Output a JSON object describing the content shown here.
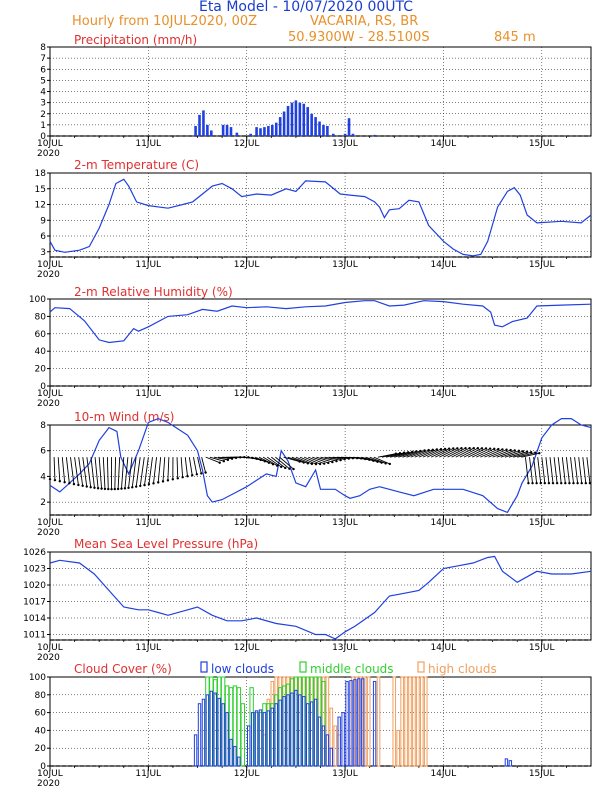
{
  "header": {
    "title": "Eta Model - 10/07/2020 00UTC",
    "subtitle": "Hourly from 10JUL2020, 00Z",
    "location": "VACARIA, RS, BR",
    "coords": "50.9300W - 28.5100S",
    "elevation": "845   m"
  },
  "colors": {
    "title": "#1a3dcc",
    "header_orange": "#e8902a",
    "panel_title": "#e03030",
    "series_blue": "#2040e0",
    "low": "#2040e0",
    "middle": "#30d030",
    "high": "#f0a060"
  },
  "chart_data": [
    {
      "id": "precip",
      "type": "bar",
      "title": "Precipitation (mm/h)",
      "x_unit": "days since 10JUL 00Z",
      "xlim": [
        0,
        5.5
      ],
      "ylim": [
        0,
        8
      ],
      "yticks": [
        0,
        1,
        2,
        3,
        4,
        5,
        6,
        7,
        8
      ],
      "xticks": [
        "10JUL",
        "11JUL",
        "12JUL",
        "13JUL",
        "14JUL",
        "15JUL"
      ],
      "year": "2020",
      "bars": [
        [
          1.48,
          0.9
        ],
        [
          1.52,
          1.9
        ],
        [
          1.56,
          2.3
        ],
        [
          1.6,
          1.0
        ],
        [
          1.64,
          0.5
        ],
        [
          1.76,
          1.0
        ],
        [
          1.8,
          1.0
        ],
        [
          1.84,
          0.8
        ],
        [
          1.9,
          0.3
        ],
        [
          2.04,
          0.2
        ],
        [
          2.1,
          0.8
        ],
        [
          2.14,
          0.7
        ],
        [
          2.18,
          0.8
        ],
        [
          2.22,
          0.9
        ],
        [
          2.26,
          1.0
        ],
        [
          2.3,
          1.2
        ],
        [
          2.34,
          1.7
        ],
        [
          2.38,
          2.2
        ],
        [
          2.42,
          2.7
        ],
        [
          2.46,
          3.0
        ],
        [
          2.5,
          3.2
        ],
        [
          2.54,
          3.0
        ],
        [
          2.58,
          2.9
        ],
        [
          2.62,
          2.6
        ],
        [
          2.66,
          2.0
        ],
        [
          2.7,
          1.7
        ],
        [
          2.74,
          1.3
        ],
        [
          2.78,
          1.0
        ],
        [
          2.82,
          0.9
        ],
        [
          2.88,
          0.2
        ],
        [
          3.0,
          0.2
        ],
        [
          3.04,
          1.6
        ],
        [
          3.08,
          0.2
        ],
        [
          3.3,
          0.1
        ]
      ]
    },
    {
      "id": "temp",
      "type": "line",
      "title": "2-m Temperature (C)",
      "xlim": [
        0,
        5.5
      ],
      "ylim": [
        2,
        18
      ],
      "yticks": [
        3,
        6,
        9,
        12,
        15,
        18
      ],
      "xticks": [
        "10JUL",
        "11JUL",
        "12JUL",
        "13JUL",
        "14JUL",
        "15JUL"
      ],
      "year": "2020",
      "points": [
        [
          0,
          5
        ],
        [
          0.05,
          3.3
        ],
        [
          0.15,
          2.9
        ],
        [
          0.3,
          3.3
        ],
        [
          0.4,
          4
        ],
        [
          0.5,
          7.5
        ],
        [
          0.6,
          12
        ],
        [
          0.67,
          16
        ],
        [
          0.75,
          16.8
        ],
        [
          0.8,
          15.5
        ],
        [
          0.88,
          12.5
        ],
        [
          1.0,
          11.8
        ],
        [
          1.2,
          11.3
        ],
        [
          1.35,
          12
        ],
        [
          1.45,
          12.5
        ],
        [
          1.55,
          14
        ],
        [
          1.65,
          15.5
        ],
        [
          1.75,
          16
        ],
        [
          1.85,
          15
        ],
        [
          1.95,
          13.5
        ],
        [
          2.1,
          14
        ],
        [
          2.25,
          13.8
        ],
        [
          2.4,
          15
        ],
        [
          2.5,
          14.5
        ],
        [
          2.6,
          16.5
        ],
        [
          2.8,
          16.3
        ],
        [
          2.95,
          14
        ],
        [
          3.05,
          13.8
        ],
        [
          3.2,
          13.5
        ],
        [
          3.3,
          12.5
        ],
        [
          3.35,
          11.5
        ],
        [
          3.4,
          9.5
        ],
        [
          3.45,
          11
        ],
        [
          3.55,
          11.2
        ],
        [
          3.65,
          12.8
        ],
        [
          3.75,
          12.5
        ],
        [
          3.85,
          8
        ],
        [
          4.0,
          5
        ],
        [
          4.1,
          3.5
        ],
        [
          4.2,
          2.5
        ],
        [
          4.3,
          2.2
        ],
        [
          4.38,
          2.5
        ],
        [
          4.45,
          5
        ],
        [
          4.55,
          11.5
        ],
        [
          4.65,
          14.5
        ],
        [
          4.72,
          15.2
        ],
        [
          4.78,
          13.8
        ],
        [
          4.85,
          10
        ],
        [
          4.95,
          8.5
        ],
        [
          5.2,
          8.8
        ],
        [
          5.4,
          8.5
        ],
        [
          5.5,
          10
        ]
      ]
    },
    {
      "id": "rh",
      "type": "line",
      "title": "2-m Relative Humidity (%)",
      "xlim": [
        0,
        5.5
      ],
      "ylim": [
        0,
        100
      ],
      "yticks": [
        0,
        20,
        40,
        60,
        80,
        100
      ],
      "xticks": [
        "10JUL",
        "11JUL",
        "12JUL",
        "13JUL",
        "14JUL",
        "15JUL"
      ],
      "year": "2020",
      "points": [
        [
          0,
          85
        ],
        [
          0.05,
          90
        ],
        [
          0.2,
          89
        ],
        [
          0.35,
          75
        ],
        [
          0.5,
          53
        ],
        [
          0.6,
          50
        ],
        [
          0.75,
          52
        ],
        [
          0.85,
          66
        ],
        [
          0.9,
          63
        ],
        [
          1.0,
          68
        ],
        [
          1.2,
          80
        ],
        [
          1.4,
          82
        ],
        [
          1.55,
          88
        ],
        [
          1.7,
          86
        ],
        [
          1.85,
          92
        ],
        [
          2.0,
          90
        ],
        [
          2.2,
          91
        ],
        [
          2.4,
          89
        ],
        [
          2.6,
          91
        ],
        [
          2.8,
          92
        ],
        [
          3.0,
          96
        ],
        [
          3.2,
          98
        ],
        [
          3.3,
          98
        ],
        [
          3.45,
          92
        ],
        [
          3.6,
          93
        ],
        [
          3.8,
          98
        ],
        [
          4.0,
          97
        ],
        [
          4.2,
          94
        ],
        [
          4.4,
          92
        ],
        [
          4.48,
          85
        ],
        [
          4.52,
          70
        ],
        [
          4.6,
          68
        ],
        [
          4.7,
          74
        ],
        [
          4.85,
          78
        ],
        [
          4.95,
          92
        ],
        [
          5.2,
          93
        ],
        [
          5.5,
          94
        ]
      ]
    },
    {
      "id": "wind",
      "type": "line",
      "title": "10-m Wind (m/s)",
      "xlim": [
        0,
        5.5
      ],
      "ylim": [
        1,
        8
      ],
      "yticks": [
        2,
        4,
        6,
        8
      ],
      "xticks": [
        "10JUL",
        "11JUL",
        "12JUL",
        "13JUL",
        "14JUL",
        "15JUL"
      ],
      "year": "2020",
      "points": [
        [
          0,
          3.3
        ],
        [
          0.1,
          2.8
        ],
        [
          0.2,
          3.5
        ],
        [
          0.3,
          4.2
        ],
        [
          0.4,
          5.0
        ],
        [
          0.5,
          6.8
        ],
        [
          0.6,
          7.8
        ],
        [
          0.68,
          7.5
        ],
        [
          0.72,
          5.5
        ],
        [
          0.8,
          4.2
        ],
        [
          0.9,
          6.0
        ],
        [
          1.0,
          8.2
        ],
        [
          1.1,
          8.5
        ],
        [
          1.2,
          8.2
        ],
        [
          1.3,
          7.7
        ],
        [
          1.4,
          7.2
        ],
        [
          1.5,
          6.0
        ],
        [
          1.55,
          4.5
        ],
        [
          1.6,
          2.5
        ],
        [
          1.65,
          2.0
        ],
        [
          1.75,
          2.2
        ],
        [
          1.9,
          2.8
        ],
        [
          2.0,
          3.2
        ],
        [
          2.1,
          3.7
        ],
        [
          2.2,
          4.2
        ],
        [
          2.3,
          4.0
        ],
        [
          2.35,
          6.0
        ],
        [
          2.42,
          5.2
        ],
        [
          2.5,
          3.5
        ],
        [
          2.6,
          3.2
        ],
        [
          2.7,
          4.5
        ],
        [
          2.75,
          3.0
        ],
        [
          2.8,
          3.0
        ],
        [
          2.9,
          3.0
        ],
        [
          3.0,
          2.5
        ],
        [
          3.05,
          2.3
        ],
        [
          3.15,
          2.5
        ],
        [
          3.25,
          3.0
        ],
        [
          3.35,
          3.2
        ],
        [
          3.45,
          3.0
        ],
        [
          3.55,
          2.8
        ],
        [
          3.7,
          2.5
        ],
        [
          3.9,
          3.0
        ],
        [
          4.0,
          3.0
        ],
        [
          4.2,
          3.0
        ],
        [
          4.4,
          2.5
        ],
        [
          4.55,
          1.5
        ],
        [
          4.65,
          1.2
        ],
        [
          4.75,
          2.5
        ],
        [
          4.8,
          3.5
        ],
        [
          4.9,
          4.8
        ],
        [
          5.0,
          7.0
        ],
        [
          5.1,
          8.0
        ],
        [
          5.2,
          8.5
        ],
        [
          5.3,
          8.5
        ],
        [
          5.4,
          8.0
        ],
        [
          5.5,
          7.8
        ]
      ]
    },
    {
      "id": "mslp",
      "type": "line",
      "title": "Mean Sea Level Pressure (hPa)",
      "xlim": [
        0,
        5.5
      ],
      "ylim": [
        1010,
        1026
      ],
      "yticks": [
        1011,
        1014,
        1017,
        1020,
        1023,
        1026
      ],
      "xticks": [
        "10JUL",
        "11JUL",
        "12JUL",
        "13JUL",
        "14JUL",
        "15JUL"
      ],
      "year": "2020",
      "points": [
        [
          0,
          1024
        ],
        [
          0.1,
          1024.5
        ],
        [
          0.3,
          1024
        ],
        [
          0.45,
          1022
        ],
        [
          0.6,
          1019
        ],
        [
          0.75,
          1016
        ],
        [
          0.9,
          1015.5
        ],
        [
          1.0,
          1015.5
        ],
        [
          1.1,
          1015
        ],
        [
          1.2,
          1014.5
        ],
        [
          1.4,
          1015.5
        ],
        [
          1.5,
          1016
        ],
        [
          1.65,
          1014.5
        ],
        [
          1.8,
          1013.5
        ],
        [
          1.95,
          1013.5
        ],
        [
          2.1,
          1014
        ],
        [
          2.3,
          1013
        ],
        [
          2.5,
          1012.5
        ],
        [
          2.7,
          1011
        ],
        [
          2.8,
          1011
        ],
        [
          2.9,
          1010.2
        ],
        [
          3.0,
          1011.5
        ],
        [
          3.1,
          1012.5
        ],
        [
          3.3,
          1015
        ],
        [
          3.45,
          1018
        ],
        [
          3.6,
          1018.5
        ],
        [
          3.75,
          1019
        ],
        [
          3.85,
          1020.5
        ],
        [
          4.0,
          1023
        ],
        [
          4.15,
          1023.5
        ],
        [
          4.3,
          1024
        ],
        [
          4.45,
          1025
        ],
        [
          4.52,
          1025.2
        ],
        [
          4.6,
          1022.5
        ],
        [
          4.75,
          1020.5
        ],
        [
          4.85,
          1021.5
        ],
        [
          4.95,
          1022.5
        ],
        [
          5.1,
          1022
        ],
        [
          5.3,
          1022
        ],
        [
          5.5,
          1022.5
        ]
      ]
    },
    {
      "id": "cloud",
      "type": "bar",
      "title": "Cloud Cover (%)",
      "legend": [
        "low clouds",
        "middle clouds",
        "high clouds"
      ],
      "xlim": [
        0,
        5.5
      ],
      "ylim": [
        0,
        100
      ],
      "yticks": [
        0,
        20,
        40,
        60,
        80,
        100
      ],
      "xticks": [
        "10JUL",
        "11JUL",
        "12JUL",
        "13JUL",
        "14JUL",
        "15JUL"
      ],
      "year": "2020",
      "high": [
        [
          2.18,
          35
        ],
        [
          2.22,
          75
        ],
        [
          2.26,
          95
        ],
        [
          2.3,
          100
        ],
        [
          2.34,
          100
        ],
        [
          2.38,
          100
        ],
        [
          2.42,
          100
        ],
        [
          2.46,
          100
        ],
        [
          2.5,
          100
        ],
        [
          2.54,
          100
        ],
        [
          2.58,
          100
        ],
        [
          2.62,
          100
        ],
        [
          2.66,
          100
        ],
        [
          2.7,
          100
        ],
        [
          2.74,
          100
        ],
        [
          2.78,
          100
        ],
        [
          2.82,
          100
        ],
        [
          2.86,
          65
        ],
        [
          2.9,
          45
        ],
        [
          2.94,
          35
        ],
        [
          3.08,
          100
        ],
        [
          3.12,
          100
        ],
        [
          3.16,
          100
        ],
        [
          3.2,
          100
        ],
        [
          3.24,
          100
        ],
        [
          3.34,
          100
        ],
        [
          3.5,
          100
        ],
        [
          3.54,
          40
        ],
        [
          3.58,
          100
        ],
        [
          3.62,
          100
        ],
        [
          3.66,
          100
        ],
        [
          3.7,
          100
        ],
        [
          3.74,
          100
        ],
        [
          3.78,
          100
        ],
        [
          3.82,
          100
        ]
      ],
      "middle": [
        [
          1.6,
          100
        ],
        [
          1.64,
          100
        ],
        [
          1.68,
          97
        ],
        [
          1.72,
          100
        ],
        [
          1.76,
          100
        ],
        [
          1.8,
          90
        ],
        [
          1.84,
          88
        ],
        [
          1.88,
          90
        ],
        [
          1.92,
          88
        ],
        [
          1.96,
          70
        ],
        [
          2.05,
          88
        ],
        [
          2.1,
          60
        ],
        [
          2.14,
          60
        ],
        [
          2.18,
          70
        ],
        [
          2.22,
          70
        ],
        [
          2.26,
          70
        ],
        [
          2.3,
          80
        ],
        [
          2.34,
          88
        ],
        [
          2.38,
          90
        ],
        [
          2.42,
          92
        ],
        [
          2.46,
          98
        ],
        [
          2.5,
          100
        ],
        [
          2.54,
          100
        ],
        [
          2.58,
          100
        ],
        [
          2.62,
          100
        ],
        [
          2.66,
          100
        ],
        [
          2.7,
          100
        ],
        [
          2.74,
          100
        ],
        [
          2.78,
          95
        ]
      ],
      "low": [
        [
          1.48,
          35
        ],
        [
          1.52,
          70
        ],
        [
          1.56,
          75
        ],
        [
          1.6,
          80
        ],
        [
          1.64,
          84
        ],
        [
          1.68,
          82
        ],
        [
          1.72,
          76
        ],
        [
          1.76,
          70
        ],
        [
          1.8,
          60
        ],
        [
          1.84,
          30
        ],
        [
          1.88,
          22
        ],
        [
          1.92,
          10
        ],
        [
          2.02,
          45
        ],
        [
          2.06,
          60
        ],
        [
          2.1,
          62
        ],
        [
          2.14,
          63
        ],
        [
          2.18,
          60
        ],
        [
          2.22,
          62
        ],
        [
          2.26,
          65
        ],
        [
          2.3,
          70
        ],
        [
          2.34,
          74
        ],
        [
          2.38,
          78
        ],
        [
          2.42,
          80
        ],
        [
          2.46,
          82
        ],
        [
          2.5,
          85
        ],
        [
          2.54,
          80
        ],
        [
          2.58,
          78
        ],
        [
          2.62,
          70
        ],
        [
          2.66,
          72
        ],
        [
          2.7,
          75
        ],
        [
          2.74,
          55
        ],
        [
          2.78,
          45
        ],
        [
          2.82,
          35
        ],
        [
          2.86,
          20
        ],
        [
          2.94,
          55
        ],
        [
          2.98,
          60
        ],
        [
          3.02,
          95
        ],
        [
          3.06,
          96
        ],
        [
          3.1,
          97
        ],
        [
          3.14,
          98
        ],
        [
          3.18,
          98
        ],
        [
          3.3,
          95
        ],
        [
          4.64,
          8
        ],
        [
          4.68,
          6
        ]
      ]
    }
  ]
}
